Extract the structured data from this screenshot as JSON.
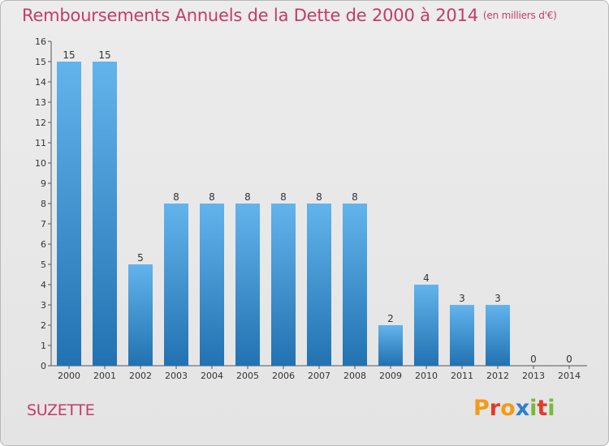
{
  "title": "Remboursements Annuels de la Dette de 2000 à 2014",
  "subtitle": "(en milliers d'€)",
  "commune": "SUZETTE",
  "logo": {
    "letters": [
      "P",
      "r",
      "o",
      "x",
      "i",
      "t",
      "i"
    ],
    "colors": [
      "#f39a1a",
      "#e23a2c",
      "#f39a1a",
      "#2a7fd4",
      "#7ab83a",
      "#e23a2c",
      "#7ab83a"
    ]
  },
  "chart_data": {
    "type": "bar",
    "title": "Remboursements Annuels de la Dette de 2000 à 2014",
    "subtitle": "(en milliers d'€)",
    "categories": [
      "2000",
      "2001",
      "2002",
      "2003",
      "2004",
      "2005",
      "2006",
      "2007",
      "2008",
      "2009",
      "2010",
      "2011",
      "2012",
      "2013",
      "2014"
    ],
    "values": [
      15,
      15,
      5,
      8,
      8,
      8,
      8,
      8,
      8,
      2,
      4,
      3,
      3,
      0,
      0
    ],
    "ylim": [
      0,
      16
    ],
    "yticks": [
      "0",
      "1",
      "2",
      "3",
      "4",
      "5",
      "6",
      "7",
      "8",
      "9",
      "10",
      "11",
      "12",
      "13",
      "14",
      "15",
      "16"
    ],
    "grid": false,
    "xlabel": "",
    "ylabel": "",
    "colors": {
      "bar_top": "#63b3ec",
      "bar_bottom": "#2272b2",
      "text": "#333333"
    }
  }
}
